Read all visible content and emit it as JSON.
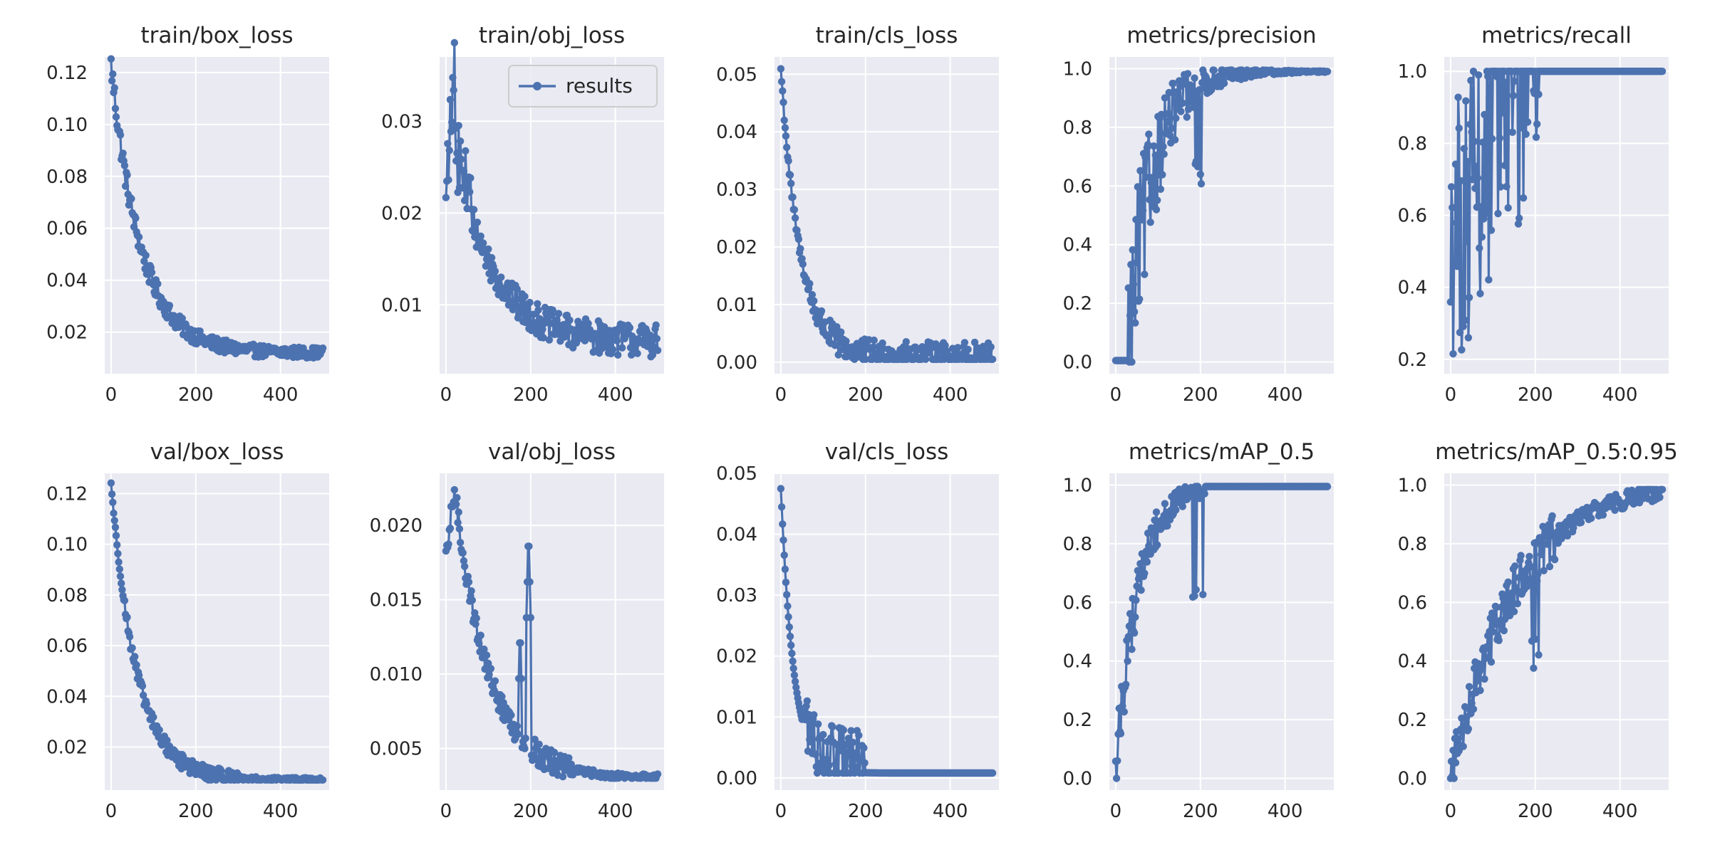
{
  "figure": {
    "legend_label": "results",
    "legend_placement": "top-right of train/obj_loss panel",
    "colors": {
      "series": "#4c72b0",
      "panel_background": "#eaeaf2",
      "grid": "#ffffff",
      "text": "#262626"
    }
  },
  "chart_data": [
    {
      "type": "line",
      "title": "train/box_loss",
      "xlim": [
        0,
        500
      ],
      "ylim": [
        0.004,
        0.126
      ],
      "xticks": [
        0,
        200,
        400
      ],
      "yticks": [
        0.02,
        0.04,
        0.06,
        0.08,
        0.1,
        0.12
      ],
      "ytick_labels": [
        "0.02",
        "0.04",
        "0.06",
        "0.08",
        "0.10",
        "0.12"
      ],
      "grid": true,
      "series": [
        {
          "name": "results",
          "start": 0.123,
          "end": 0.009,
          "tau": 70,
          "floor": 0.012,
          "noise": 0.0035
        }
      ]
    },
    {
      "type": "line",
      "title": "train/obj_loss",
      "xlim": [
        0,
        500
      ],
      "ylim": [
        0.0025,
        0.037
      ],
      "xticks": [
        0,
        200,
        400
      ],
      "yticks": [
        0.01,
        0.02,
        0.03
      ],
      "ytick_labels": [
        "0.01",
        "0.02",
        "0.03"
      ],
      "grid": true,
      "legend": true,
      "series": [
        {
          "name": "results",
          "start": 0.02,
          "peak": 0.036,
          "peak_epoch": 22,
          "end": 0.005,
          "tau": 90,
          "floor": 0.006,
          "noise": 0.0018
        }
      ]
    },
    {
      "type": "line",
      "title": "train/cls_loss",
      "xlim": [
        0,
        500
      ],
      "ylim": [
        -0.002,
        0.053
      ],
      "xticks": [
        0,
        200,
        400
      ],
      "yticks": [
        0.0,
        0.01,
        0.02,
        0.03,
        0.04,
        0.05
      ],
      "ytick_labels": [
        "0.00",
        "0.01",
        "0.02",
        "0.03",
        "0.04",
        "0.05"
      ],
      "grid": true,
      "series": [
        {
          "name": "results",
          "start": 0.051,
          "end": 0.001,
          "tau": 45,
          "floor": 0.001,
          "noise": 0.0025
        }
      ]
    },
    {
      "type": "line",
      "title": "metrics/precision",
      "xlim": [
        0,
        500
      ],
      "ylim": [
        -0.04,
        1.04
      ],
      "xticks": [
        0,
        200,
        400
      ],
      "yticks": [
        0.0,
        0.2,
        0.4,
        0.6,
        0.8,
        1.0
      ],
      "ytick_labels": [
        "0.0",
        "0.2",
        "0.4",
        "0.6",
        "0.8",
        "1.0"
      ],
      "grid": true,
      "series": [
        {
          "name": "results",
          "start": 0.0,
          "end": 0.99,
          "zero_until": 30,
          "rise_tau": 55,
          "noise": 0.2
        }
      ]
    },
    {
      "type": "line",
      "title": "metrics/recall",
      "xlim": [
        0,
        500
      ],
      "ylim": [
        0.16,
        1.04
      ],
      "xticks": [
        0,
        200,
        400
      ],
      "yticks": [
        0.2,
        0.4,
        0.6,
        0.8,
        1.0
      ],
      "ytick_labels": [
        "0.2",
        "0.4",
        "0.6",
        "0.8",
        "1.0"
      ],
      "grid": true,
      "series": [
        {
          "name": "results",
          "start": 0.55,
          "end": 1.0,
          "min": 0.2,
          "settle_epoch": 210,
          "noise": 0.22
        }
      ]
    },
    {
      "type": "line",
      "title": "val/box_loss",
      "xlim": [
        0,
        500
      ],
      "ylim": [
        0.003,
        0.128
      ],
      "xticks": [
        0,
        200,
        400
      ],
      "yticks": [
        0.02,
        0.04,
        0.06,
        0.08,
        0.1,
        0.12
      ],
      "ytick_labels": [
        "0.02",
        "0.04",
        "0.06",
        "0.08",
        "0.10",
        "0.12"
      ],
      "grid": true,
      "series": [
        {
          "name": "results",
          "start": 0.124,
          "end": 0.007,
          "tau": 60,
          "floor": 0.007,
          "noise": 0.003
        }
      ]
    },
    {
      "type": "line",
      "title": "val/obj_loss",
      "xlim": [
        0,
        500
      ],
      "ylim": [
        0.0022,
        0.0235
      ],
      "xticks": [
        0,
        200,
        400
      ],
      "yticks": [
        0.005,
        0.01,
        0.015,
        0.02
      ],
      "ytick_labels": [
        "0.005",
        "0.010",
        "0.015",
        "0.020"
      ],
      "grid": true,
      "series": [
        {
          "name": "results",
          "start": 0.0175,
          "peak": 0.0225,
          "peak_epoch": 20,
          "end": 0.003,
          "tau": 80,
          "floor": 0.003,
          "spike_epoch": 195,
          "spike_value": 0.0198,
          "noise": 0.0008
        }
      ]
    },
    {
      "type": "line",
      "title": "val/cls_loss",
      "xlim": [
        0,
        500
      ],
      "ylim": [
        -0.002,
        0.05
      ],
      "xticks": [
        0,
        200,
        400
      ],
      "yticks": [
        0.0,
        0.01,
        0.02,
        0.03,
        0.04,
        0.05
      ],
      "ytick_labels": [
        "0.00",
        "0.01",
        "0.02",
        "0.03",
        "0.04",
        "0.05"
      ],
      "grid": true,
      "series": [
        {
          "name": "results",
          "start": 0.0475,
          "end": 0.0008,
          "tau": 30,
          "floor": 0.0008,
          "noise": 0.004
        }
      ]
    },
    {
      "type": "line",
      "title": "metrics/mAP_0.5",
      "xlim": [
        0,
        500
      ],
      "ylim": [
        -0.04,
        1.04
      ],
      "xticks": [
        0,
        200,
        400
      ],
      "yticks": [
        0.0,
        0.2,
        0.4,
        0.6,
        0.8,
        1.0
      ],
      "ytick_labels": [
        "0.0",
        "0.2",
        "0.4",
        "0.6",
        "0.8",
        "1.0"
      ],
      "grid": true,
      "series": [
        {
          "name": "results",
          "start": 0.0,
          "end": 0.995,
          "rise_tau": 50,
          "noise": 0.12
        }
      ]
    },
    {
      "type": "line",
      "title": "metrics/mAP_0.5:0.95",
      "xlim": [
        0,
        500
      ],
      "ylim": [
        -0.04,
        1.04
      ],
      "xticks": [
        0,
        200,
        400
      ],
      "yticks": [
        0.0,
        0.2,
        0.4,
        0.6,
        0.8,
        1.0
      ],
      "ytick_labels": [
        "0.0",
        "0.2",
        "0.4",
        "0.6",
        "0.8",
        "1.0"
      ],
      "grid": true,
      "series": [
        {
          "name": "results",
          "start": 0.0,
          "end": 0.98,
          "rise_tau": 150,
          "noise": 0.06
        }
      ]
    }
  ]
}
